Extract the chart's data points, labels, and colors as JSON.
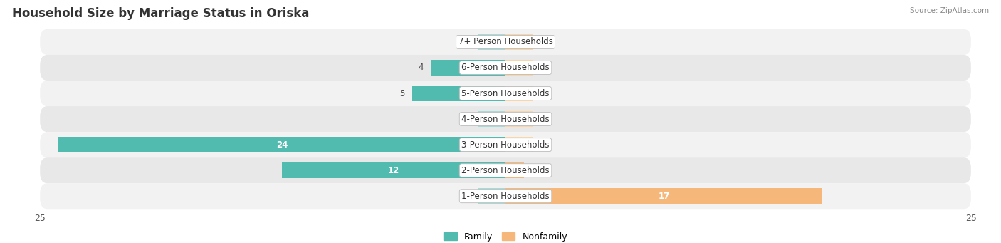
{
  "title": "Household Size by Marriage Status in Oriska",
  "source": "Source: ZipAtlas.com",
  "categories": [
    "7+ Person Households",
    "6-Person Households",
    "5-Person Households",
    "4-Person Households",
    "3-Person Households",
    "2-Person Households",
    "1-Person Households"
  ],
  "family_values": [
    0,
    4,
    5,
    0,
    24,
    12,
    0
  ],
  "nonfamily_values": [
    0,
    0,
    0,
    0,
    0,
    1,
    17
  ],
  "family_color": "#52bbb0",
  "nonfamily_color": "#f5b87a",
  "family_color_light": "#a8dbd8",
  "nonfamily_color_light": "#f9d5a8",
  "axis_limit": 25,
  "bar_height": 0.62,
  "title_fontsize": 12,
  "label_fontsize": 8.5,
  "tick_fontsize": 9,
  "min_bar_display": 2
}
